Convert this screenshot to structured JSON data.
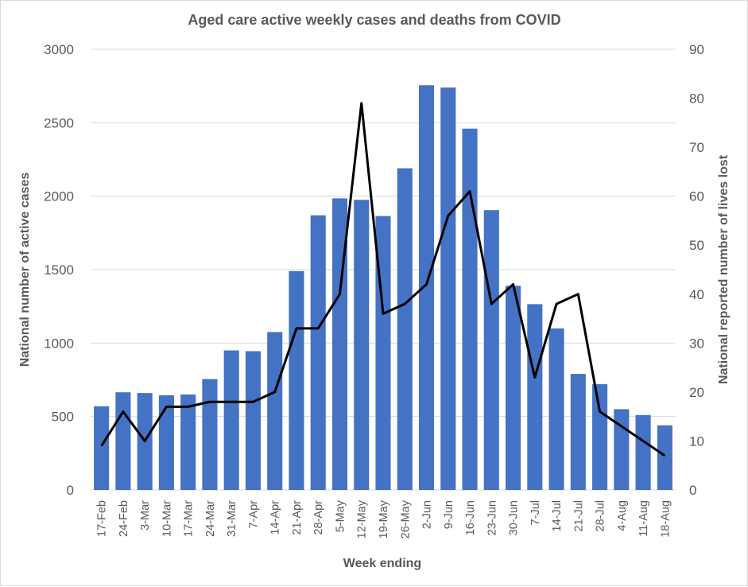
{
  "chart_data": {
    "type": "bar",
    "title": "Aged care active weekly cases and deaths from COVID",
    "xlabel": "Week ending",
    "ylabel": "National number of active cases",
    "y2label": "National reported number of lives lost",
    "ylim": [
      0,
      3000
    ],
    "y2lim": [
      0,
      90
    ],
    "yticks": [
      0,
      500,
      1000,
      1500,
      2000,
      2500,
      3000
    ],
    "y2ticks": [
      0,
      10,
      20,
      30,
      40,
      50,
      60,
      70,
      80,
      90
    ],
    "grid": true,
    "legend": "none",
    "categories": [
      "17-Feb",
      "24-Feb",
      "3-Mar",
      "10-Mar",
      "17-Mar",
      "24-Mar",
      "31-Mar",
      "7-Apr",
      "14-Apr",
      "21-Apr",
      "28-Apr",
      "5-May",
      "12-May",
      "19-May",
      "26-May",
      "2-Jun",
      "9-Jun",
      "16-Jun",
      "23-Jun",
      "30-Jun",
      "7-Jul",
      "14-Jul",
      "21-Jul",
      "28-Jul",
      "4-Aug",
      "11-Aug",
      "18-Aug"
    ],
    "series": [
      {
        "type": "bar",
        "axis": "left",
        "color": "#4472C4",
        "values": [
          570,
          665,
          660,
          645,
          650,
          755,
          950,
          945,
          1075,
          1490,
          1870,
          1985,
          1975,
          1865,
          2190,
          2755,
          2740,
          2460,
          1905,
          1390,
          1265,
          1100,
          790,
          720,
          550,
          510,
          440
        ]
      },
      {
        "type": "line",
        "axis": "right",
        "color": "#000000",
        "values": [
          9,
          16,
          10,
          17,
          17,
          18,
          18,
          18,
          20,
          33,
          33,
          40,
          79,
          36,
          38,
          42,
          56,
          61,
          38,
          42,
          23,
          38,
          40,
          16,
          13,
          10,
          7
        ]
      }
    ]
  }
}
